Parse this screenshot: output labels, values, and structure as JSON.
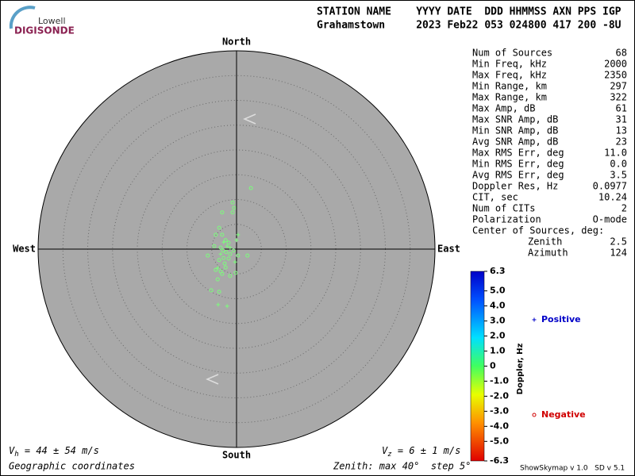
{
  "logo": {
    "top": "Lowell",
    "bottom": "DIGISONDE"
  },
  "header": {
    "labels": "STATION NAME    YYYY DATE  DDD HHMMSS AXN PPS IGP",
    "values": "Grahamstown     2023 Feb22 053 024800 417 200 -8U"
  },
  "stats": [
    [
      "Num of Sources",
      "68"
    ],
    [
      "Min Freq, kHz",
      "2000"
    ],
    [
      "Max Freq, kHz",
      "2350"
    ],
    [
      "Min Range, km",
      "297"
    ],
    [
      "Max Range, km",
      "322"
    ],
    [
      "Max Amp, dB",
      "61"
    ],
    [
      "Max SNR Amp, dB",
      "31"
    ],
    [
      "Min SNR Amp, dB",
      "13"
    ],
    [
      "Avg SNR Amp, dB",
      "23"
    ],
    [
      "Max RMS Err, deg",
      "11.0"
    ],
    [
      "Min RMS Err, deg",
      "0.0"
    ],
    [
      "Avg RMS Err, deg",
      "3.5"
    ],
    [
      "Doppler Res, Hz",
      "0.0977"
    ],
    [
      "CIT, sec",
      "10.24"
    ],
    [
      "Num of CITs",
      "2"
    ],
    [
      "Polarization",
      "O-mode"
    ]
  ],
  "center": {
    "title": "Center of Sources, deg:",
    "rows": [
      [
        "Zenith",
        "2.5"
      ],
      [
        "Azimuth",
        "124"
      ]
    ]
  },
  "footer": {
    "vh": {
      "symbol": "V",
      "sub": "h",
      "text": " = 44 ± 54 m/s"
    },
    "vz": {
      "symbol": "V",
      "sub": "z",
      "text": " = 6 ± 1 m/s"
    },
    "coords": "Geographic coordinates",
    "zenith": "Zenith: max 40°  step 5°",
    "version": "ShowSkymap v 1.0   SD v 5.1"
  },
  "chart_data": {
    "type": "skymap",
    "directions": {
      "north": "North",
      "south": "South",
      "east": "East",
      "west": "West"
    },
    "zenith_max": 40,
    "zenith_step": 5,
    "point_color": "#7cfc7c",
    "series": [
      {
        "name": "Positive",
        "marker": "plus",
        "color": "#0000c8",
        "x": [
          0,
          -2.6,
          -1.3,
          -3.2,
          0.3,
          -1.9,
          -3.7,
          -1.9,
          -3.8,
          -0.3
        ],
        "y": [
          1.8,
          1.4,
          0.3,
          -1.0,
          2.9,
          0.6,
          -11.2,
          -11.5,
          -3.8,
          -2.6
        ]
      },
      {
        "name": "Negative",
        "marker": "circle",
        "color": "#d00000",
        "x": [
          -0.8,
          -0.5,
          -2.9,
          2.9,
          -0.8,
          -3.5,
          -4.2,
          -2.9,
          -2.2,
          -1.6,
          -3.2,
          -2.7,
          -2.1,
          -1.3,
          -0.6,
          0.3,
          2.2,
          -5.8,
          -3.5,
          -2.4,
          -4.2,
          -3.2,
          -2.2,
          -3.8,
          -2.9,
          -5.1,
          -3.5,
          -1.3,
          -0.2,
          -1.6,
          -4.5,
          -2.6
        ],
        "y": [
          9.4,
          8.3,
          7.4,
          12.3,
          7.4,
          4.3,
          2.9,
          2.9,
          1.8,
          1.3,
          0.3,
          -0.3,
          -0.6,
          -1.0,
          -0.3,
          -1.3,
          -1.3,
          -1.3,
          -2.2,
          -2.9,
          -4.2,
          -4.5,
          -3.7,
          -6.1,
          -5.0,
          -8.3,
          -8.6,
          -5.4,
          -4.8,
          -1.9,
          0.6,
          -1.8
        ]
      }
    ],
    "colorbar": {
      "label": "Doppler, Hz",
      "lim": [
        -6.3,
        6.3
      ],
      "ticks": [
        6.3,
        {
          "value": 5,
          "label": "5.0"
        },
        {
          "value": 4,
          "label": "4.0"
        },
        {
          "value": 3,
          "label": "3.0"
        },
        {
          "value": 2,
          "label": "2.0"
        },
        {
          "value": 1,
          "label": "1.0"
        },
        0,
        {
          "value": -1,
          "label": "-1.0"
        },
        {
          "value": -2,
          "label": "-2.0"
        },
        {
          "value": -3,
          "label": "-3.0"
        },
        {
          "value": -4,
          "label": "-4.0"
        },
        {
          "value": -5,
          "label": "-5.0"
        },
        -6.3
      ]
    }
  }
}
